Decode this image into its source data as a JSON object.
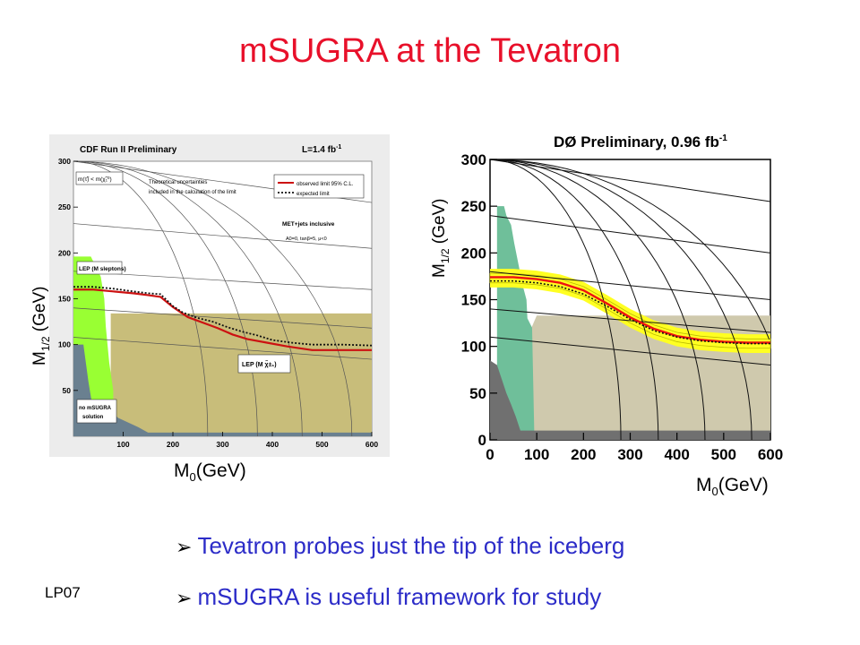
{
  "slide": {
    "title": "mSUGRA at the Tevatron",
    "footer": "LP07",
    "bullets": [
      "Tevatron probes just the tip of the iceberg",
      "mSUGRA is useful framework for study"
    ]
  },
  "axis_labels": {
    "left_y": "M1/2 (GeV)",
    "left_y_main": "M",
    "left_y_sub": "1/2",
    "left_y_unit": " (GeV)",
    "left_x": "M0(GeV)",
    "left_x_main": "M",
    "left_x_sub": "0",
    "left_x_unit": "(GeV)",
    "right_y_main": "M",
    "right_y_sub": "1/2",
    "right_y_unit": " (GeV)",
    "right_x_main": "M",
    "right_x_sub": "0",
    "right_x_unit": "(GeV)"
  },
  "chart_data": [
    {
      "type": "line",
      "title": "CDF Run II Preliminary",
      "luminosity": "L=1.4 fb",
      "luminosity_sup": "-1",
      "xlabel": "M0(GeV)",
      "ylabel": "M1/2 (GeV)",
      "xlim": [
        0,
        600
      ],
      "ylim": [
        0,
        300
      ],
      "x_ticks": [
        "100",
        "200",
        "300",
        "400",
        "500",
        "600"
      ],
      "y_ticks": [
        "50",
        "100",
        "150",
        "200",
        "250",
        "300"
      ],
      "annotations": {
        "chargino_box": "m(τ̃) < m(χ̃₁⁰)",
        "theory_note_1": "Theoretical uncertainties",
        "theory_note_2": "included in the calculation of the limit",
        "legend_observed": "observed limit 95% C.L.",
        "legend_expected": "expected limit",
        "selection": "MET+jets inclusive",
        "params": "A0=0, tanβ=5, μ<0",
        "lep_sleptons": "LEP (M sleptons)",
        "lep_chargino": "LEP (M χ̃±₁)",
        "no_msugra_1": "no mSUGRA",
        "no_msugra_2": "solution"
      },
      "colors": {
        "observed": "#cc1111",
        "expected": "#111111",
        "lep_slepton": "#99ff33",
        "lep_chargino": "#c8bd7a",
        "no_solution": "#6a8090"
      },
      "series": [
        {
          "name": "observed limit 95% C.L.",
          "style": "solid",
          "x": [
            0,
            40,
            80,
            120,
            150,
            175,
            200,
            230,
            260,
            290,
            320,
            350,
            390,
            430,
            480,
            540,
            600
          ],
          "y": [
            160,
            160,
            158,
            156,
            154,
            152,
            141,
            130,
            124,
            118,
            111,
            106,
            102,
            98,
            94,
            94,
            94
          ]
        },
        {
          "name": "expected limit",
          "style": "dotted",
          "x": [
            0,
            40,
            80,
            120,
            150,
            175,
            200,
            220,
            250,
            280,
            310,
            340,
            370,
            400,
            440,
            480,
            540,
            600
          ],
          "y": [
            163,
            163,
            161,
            158,
            156,
            155,
            142,
            135,
            129,
            125,
            119,
            114,
            110,
            105,
            102,
            100,
            100,
            99
          ]
        }
      ]
    },
    {
      "type": "line",
      "title": "DØ Preliminary, 0.96 fb",
      "title_sup": "-1",
      "xlabel": "M0(GeV)",
      "ylabel": "M1/2 (GeV)",
      "xlim": [
        0,
        600
      ],
      "ylim": [
        0,
        300
      ],
      "x_ticks": [
        "0",
        "100",
        "200",
        "300",
        "400",
        "500",
        "600"
      ],
      "y_ticks": [
        "0",
        "50",
        "100",
        "150",
        "200",
        "250",
        "300"
      ],
      "colors": {
        "observed": "#ee1111",
        "expected": "#111111",
        "band": "#ffff22",
        "band_edge": "#bbbb00",
        "excluded_lep": "#6fbf9a",
        "theory_region": "#cfc9ad",
        "no_solution": "#707070"
      },
      "series": [
        {
          "name": "observed",
          "style": "solid",
          "x": [
            0,
            50,
            100,
            150,
            200,
            250,
            300,
            350,
            400,
            450,
            500,
            550,
            600
          ],
          "y": [
            174,
            174,
            172,
            168,
            160,
            146,
            131,
            119,
            111,
            107,
            105,
            104,
            104
          ]
        },
        {
          "name": "expected",
          "style": "dotted",
          "x": [
            0,
            50,
            100,
            150,
            200,
            250,
            300,
            350,
            400,
            450,
            500,
            550,
            600
          ],
          "y": [
            170,
            170,
            168,
            164,
            156,
            143,
            129,
            117,
            110,
            106,
            104,
            103,
            103
          ]
        }
      ]
    }
  ]
}
